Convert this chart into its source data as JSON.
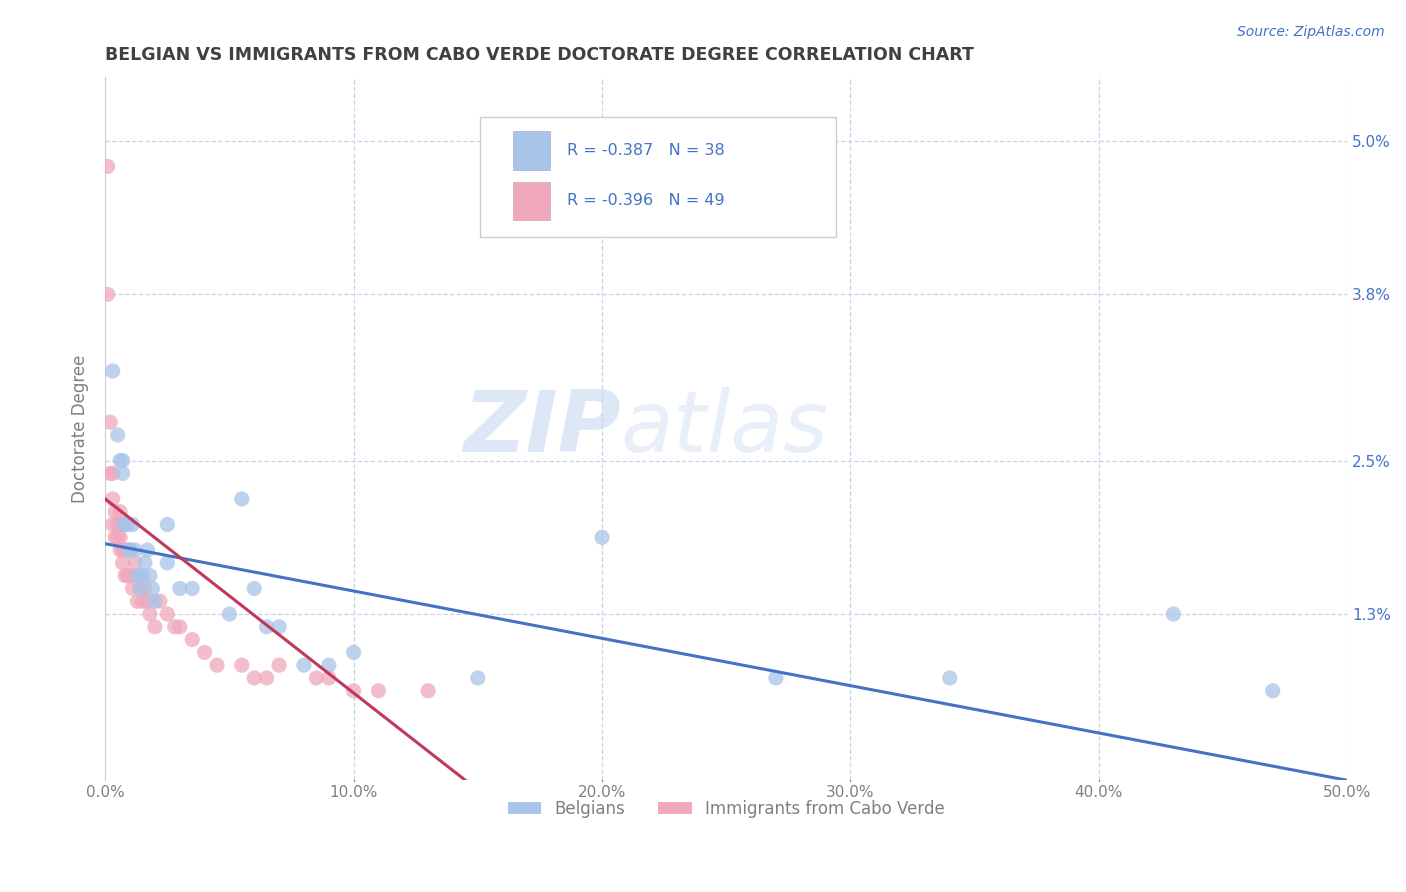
{
  "title": "BELGIAN VS IMMIGRANTS FROM CABO VERDE DOCTORATE DEGREE CORRELATION CHART",
  "source": "Source: ZipAtlas.com",
  "ylabel": "Doctorate Degree",
  "xlim": [
    0.0,
    0.5
  ],
  "ylim": [
    0.0,
    0.055
  ],
  "yticks": [
    0.0,
    0.013,
    0.025,
    0.038,
    0.05
  ],
  "ytick_labels_right": [
    "",
    "1.3%",
    "2.5%",
    "3.8%",
    "5.0%"
  ],
  "xtick_labels": [
    "0.0%",
    "10.0%",
    "20.0%",
    "30.0%",
    "40.0%",
    "50.0%"
  ],
  "xticks": [
    0.0,
    0.1,
    0.2,
    0.3,
    0.4,
    0.5
  ],
  "watermark_zip": "ZIP",
  "watermark_atlas": "atlas",
  "legend_r1": "R = -0.387",
  "legend_n1": "N = 38",
  "legend_r2": "R = -0.396",
  "legend_n2": "N = 49",
  "blue_color": "#a8c4e8",
  "pink_color": "#f0a8bc",
  "blue_line_color": "#4472c4",
  "pink_line_color": "#c0385a",
  "title_color": "#404040",
  "axis_color": "#808080",
  "source_color": "#4472c4",
  "legend_text_color": "#4472c4",
  "grid_color": "#c8d4e8",
  "background_color": "#ffffff",
  "belgians_x": [
    0.003,
    0.005,
    0.006,
    0.007,
    0.007,
    0.008,
    0.008,
    0.009,
    0.01,
    0.01,
    0.011,
    0.012,
    0.013,
    0.014,
    0.015,
    0.016,
    0.017,
    0.018,
    0.019,
    0.02,
    0.025,
    0.025,
    0.03,
    0.035,
    0.05,
    0.055,
    0.06,
    0.065,
    0.07,
    0.08,
    0.09,
    0.1,
    0.15,
    0.2,
    0.27,
    0.34,
    0.43,
    0.47
  ],
  "belgians_y": [
    0.032,
    0.027,
    0.025,
    0.025,
    0.024,
    0.02,
    0.02,
    0.02,
    0.018,
    0.018,
    0.02,
    0.018,
    0.016,
    0.015,
    0.016,
    0.017,
    0.018,
    0.016,
    0.015,
    0.014,
    0.017,
    0.02,
    0.015,
    0.015,
    0.013,
    0.022,
    0.015,
    0.012,
    0.012,
    0.009,
    0.009,
    0.01,
    0.008,
    0.019,
    0.008,
    0.008,
    0.013,
    0.007
  ],
  "caboverde_x": [
    0.001,
    0.001,
    0.002,
    0.002,
    0.003,
    0.003,
    0.003,
    0.004,
    0.004,
    0.005,
    0.005,
    0.006,
    0.006,
    0.006,
    0.007,
    0.007,
    0.007,
    0.008,
    0.008,
    0.009,
    0.009,
    0.01,
    0.01,
    0.011,
    0.012,
    0.013,
    0.013,
    0.014,
    0.015,
    0.016,
    0.017,
    0.018,
    0.02,
    0.022,
    0.025,
    0.028,
    0.03,
    0.035,
    0.04,
    0.045,
    0.055,
    0.06,
    0.065,
    0.07,
    0.085,
    0.09,
    0.1,
    0.11,
    0.13
  ],
  "caboverde_y": [
    0.048,
    0.038,
    0.028,
    0.024,
    0.024,
    0.022,
    0.02,
    0.021,
    0.019,
    0.02,
    0.019,
    0.021,
    0.019,
    0.018,
    0.02,
    0.018,
    0.017,
    0.018,
    0.016,
    0.018,
    0.016,
    0.018,
    0.016,
    0.015,
    0.017,
    0.016,
    0.014,
    0.015,
    0.014,
    0.015,
    0.014,
    0.013,
    0.012,
    0.014,
    0.013,
    0.012,
    0.012,
    0.011,
    0.01,
    0.009,
    0.009,
    0.008,
    0.008,
    0.009,
    0.008,
    0.008,
    0.007,
    0.007,
    0.007
  ],
  "blue_line_x0": 0.0,
  "blue_line_y0": 0.0185,
  "blue_line_x1": 0.5,
  "blue_line_y1": 0.0,
  "pink_line_x0": 0.0,
  "pink_line_y0": 0.022,
  "pink_line_x1": 0.145,
  "pink_line_y1": 0.0
}
